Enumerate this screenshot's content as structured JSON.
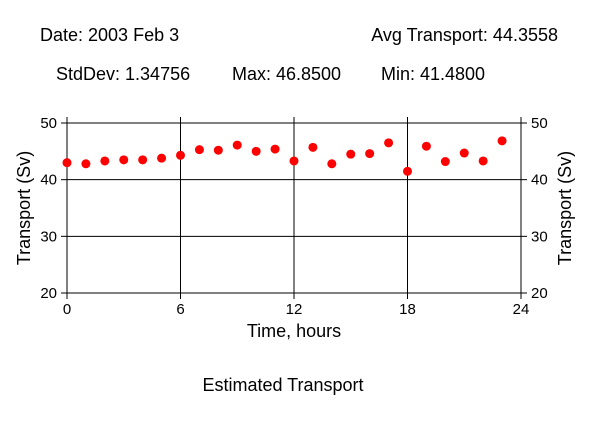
{
  "header": {
    "date": "Date: 2003 Feb 3",
    "avg": "Avg Transport: 44.3558",
    "stddev": "StdDev: 1.34756",
    "max": "Max: 46.8500",
    "min": "Min: 41.4800"
  },
  "caption": "Estimated Transport",
  "chart_data": {
    "type": "scatter",
    "title": "",
    "xlabel": "Time, hours",
    "ylabel": "Transport (Sv)",
    "ylabel_right": "Transport (Sv)",
    "xlim": [
      0,
      24
    ],
    "ylim": [
      20,
      50
    ],
    "x_ticks": [
      "0",
      "6",
      "12",
      "18",
      "24"
    ],
    "y_ticks": [
      "20",
      "30",
      "40",
      "50"
    ],
    "grid": true,
    "marker_color": "#ff0000",
    "series": [
      {
        "x": [
          0,
          1,
          2,
          3,
          4,
          5,
          6,
          7,
          8,
          9,
          10,
          11,
          12,
          13,
          14,
          15,
          16,
          17,
          18,
          19,
          20,
          21,
          22,
          23
        ],
        "y": [
          43.0,
          42.8,
          43.3,
          43.5,
          43.5,
          43.8,
          44.3,
          45.3,
          45.2,
          46.1,
          45.0,
          45.4,
          43.3,
          45.7,
          42.8,
          44.5,
          44.6,
          46.5,
          41.48,
          45.9,
          43.2,
          44.7,
          43.3,
          46.85
        ]
      }
    ]
  }
}
